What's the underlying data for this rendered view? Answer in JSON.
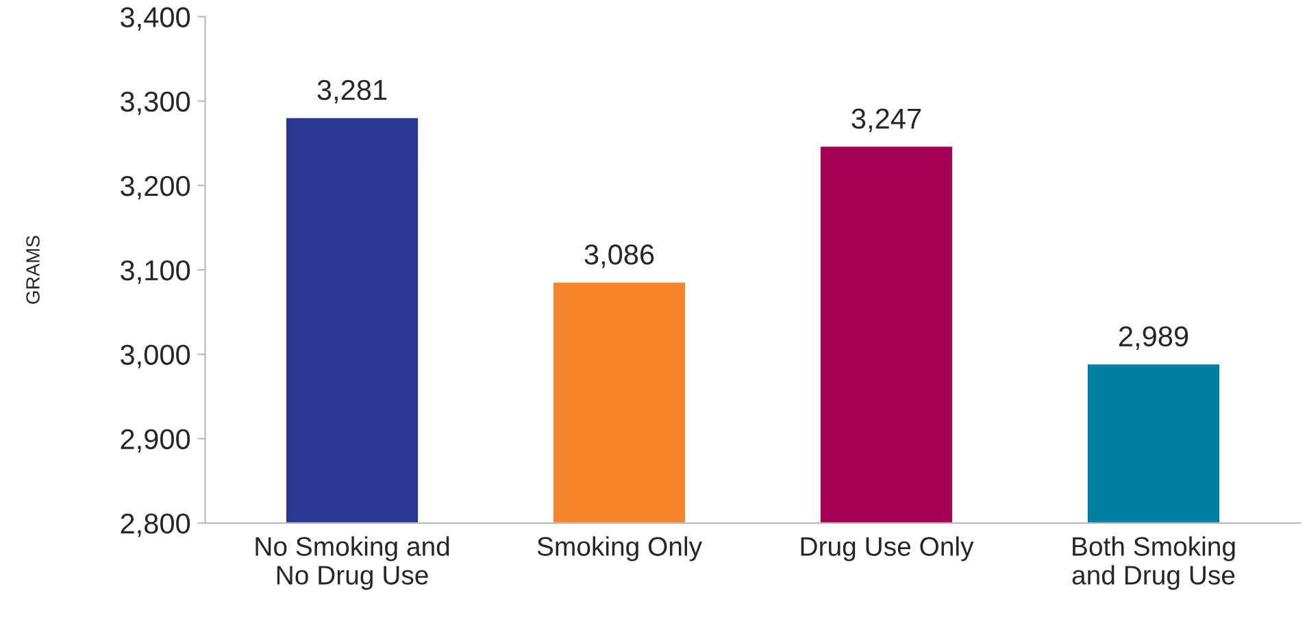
{
  "chart_data": {
    "type": "bar",
    "ylabel": "GRAMS",
    "categories": [
      "No Smoking and\nNo Drug Use",
      "Smoking Only",
      "Drug Use Only",
      "Both Smoking\nand Drug Use"
    ],
    "values": [
      3281,
      3086,
      3247,
      2989
    ],
    "colors": [
      "#2a3891",
      "#f3842c",
      "#a60056",
      "#0080a0"
    ],
    "value_labels": [
      "3,281",
      "3,086",
      "3,247",
      "2,989"
    ],
    "ylim": [
      2800,
      3400
    ],
    "yticks": [
      {
        "value": 2800,
        "label": "2,800"
      },
      {
        "value": 2900,
        "label": "2,900"
      },
      {
        "value": 3000,
        "label": "3,000"
      },
      {
        "value": 3100,
        "label": "3,100"
      },
      {
        "value": 3200,
        "label": "3,200"
      },
      {
        "value": 3300,
        "label": "3,300"
      },
      {
        "value": 3400,
        "label": "3,400"
      }
    ],
    "grid": false,
    "legend": false
  }
}
